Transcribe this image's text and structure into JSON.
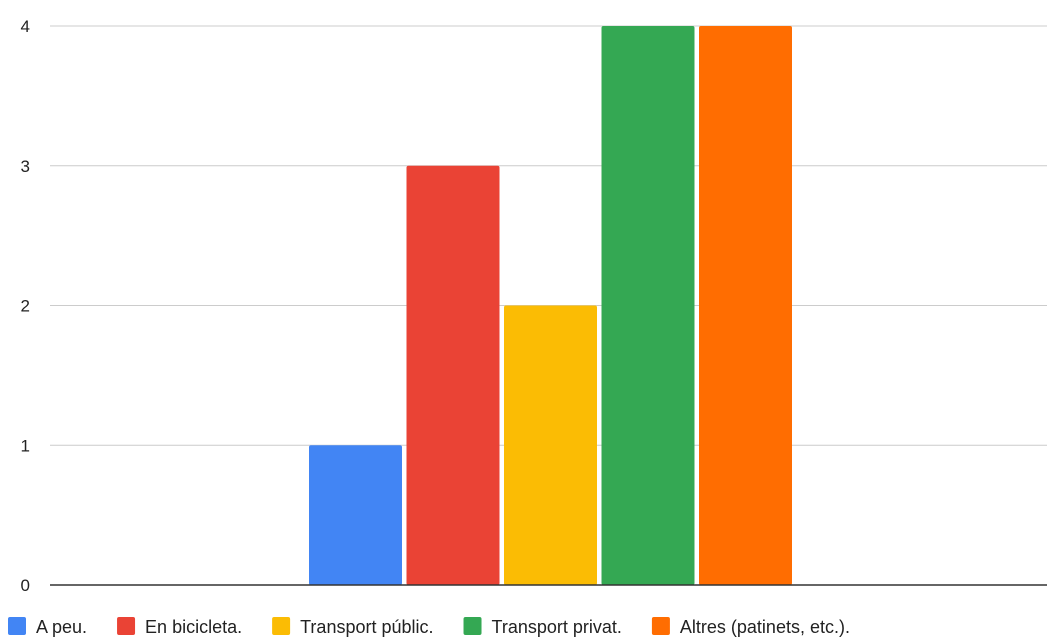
{
  "chart_data": {
    "type": "bar",
    "title": "",
    "xlabel": "",
    "ylabel": "",
    "categories": [
      ""
    ],
    "ylim": [
      0,
      4
    ],
    "yticks": [
      "0",
      "1",
      "2",
      "3",
      "4"
    ],
    "grid": true,
    "legend_position": "bottom",
    "series": [
      {
        "name": "A peu.",
        "values": [
          1
        ],
        "color": "#4285F4"
      },
      {
        "name": "En bicicleta.",
        "values": [
          3
        ],
        "color": "#EA4335"
      },
      {
        "name": "Transport públic.",
        "values": [
          2
        ],
        "color": "#FBBC04"
      },
      {
        "name": "Transport privat.",
        "values": [
          4
        ],
        "color": "#34A853"
      },
      {
        "name": "Altres (patinets, etc.).",
        "values": [
          4
        ],
        "color": "#FF6D01"
      }
    ]
  },
  "colors": {
    "gridline": "#cccccc",
    "baseline": "#333333",
    "text": "#222222"
  }
}
